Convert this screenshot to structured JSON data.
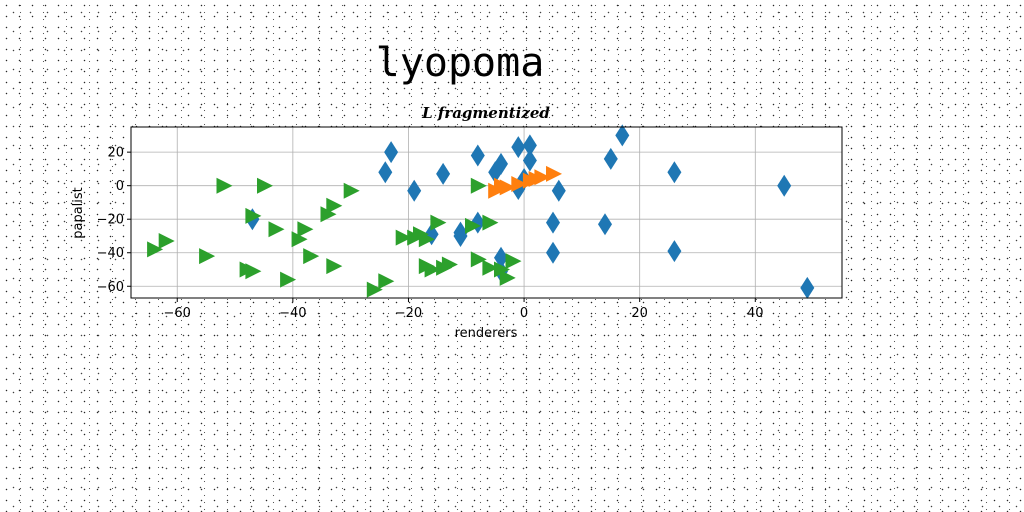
{
  "page_title": "lyopoma",
  "chart_data": {
    "type": "scatter",
    "title": "L fragmentized",
    "xlabel": "renderers",
    "ylabel": "papalist",
    "xlim": [
      -68,
      55
    ],
    "ylim": [
      -67,
      35
    ],
    "xticks": [
      -60,
      -40,
      -20,
      0,
      20,
      40
    ],
    "yticks": [
      -60,
      -40,
      -20,
      0,
      20
    ],
    "grid": true,
    "series": [
      {
        "marker": "diamond",
        "color": "#1f77b4",
        "points": [
          [
            -23,
            20
          ],
          [
            -24,
            8
          ],
          [
            -19,
            -3
          ],
          [
            -14,
            7
          ],
          [
            -8,
            18
          ],
          [
            -4,
            13
          ],
          [
            -5,
            8
          ],
          [
            -1,
            23
          ],
          [
            1,
            24
          ],
          [
            1,
            15
          ],
          [
            0,
            4
          ],
          [
            -1,
            -2
          ],
          [
            6,
            -3
          ],
          [
            5,
            -22
          ],
          [
            5,
            -40
          ],
          [
            15,
            16
          ],
          [
            14,
            -23
          ],
          [
            17,
            30
          ],
          [
            26,
            8
          ],
          [
            26,
            -39
          ],
          [
            45,
            0
          ],
          [
            49,
            -61
          ],
          [
            -11,
            -28
          ],
          [
            -11,
            -30
          ],
          [
            -16,
            -29
          ],
          [
            -8,
            -22
          ],
          [
            -4,
            -43
          ],
          [
            -4,
            -51
          ],
          [
            -47,
            -20
          ]
        ]
      },
      {
        "marker": "triangle-right",
        "color": "#ff7f0e",
        "points": [
          [
            -5,
            -3
          ],
          [
            -3,
            -1
          ],
          [
            -1,
            1
          ],
          [
            1,
            3
          ],
          [
            3,
            5
          ],
          [
            5,
            7
          ],
          [
            -4,
            0
          ],
          [
            2,
            4
          ]
        ]
      },
      {
        "marker": "triangle-right",
        "color": "#2ca02c",
        "points": [
          [
            -52,
            0
          ],
          [
            -45,
            0
          ],
          [
            -30,
            -3
          ],
          [
            -33,
            -12
          ],
          [
            -34,
            -17
          ],
          [
            -47,
            -18
          ],
          [
            -43,
            -26
          ],
          [
            -38,
            -26
          ],
          [
            -39,
            -32
          ],
          [
            -62,
            -33
          ],
          [
            -64,
            -38
          ],
          [
            -55,
            -42
          ],
          [
            -37,
            -42
          ],
          [
            -33,
            -48
          ],
          [
            -47,
            -51
          ],
          [
            -48,
            -50
          ],
          [
            -41,
            -56
          ],
          [
            -24,
            -57
          ],
          [
            -26,
            -62
          ],
          [
            -19,
            -31
          ],
          [
            -21,
            -31
          ],
          [
            -17,
            -32
          ],
          [
            -18,
            -29
          ],
          [
            -15,
            -22
          ],
          [
            -6,
            -22
          ],
          [
            -9,
            -24
          ],
          [
            -8,
            -44
          ],
          [
            -6,
            -49
          ],
          [
            -4,
            -50
          ],
          [
            -2,
            -45
          ],
          [
            -3,
            -55
          ],
          [
            -13,
            -47
          ],
          [
            -14,
            -49
          ],
          [
            -16,
            -50
          ],
          [
            -17,
            -48
          ],
          [
            -8,
            0
          ]
        ]
      }
    ]
  }
}
